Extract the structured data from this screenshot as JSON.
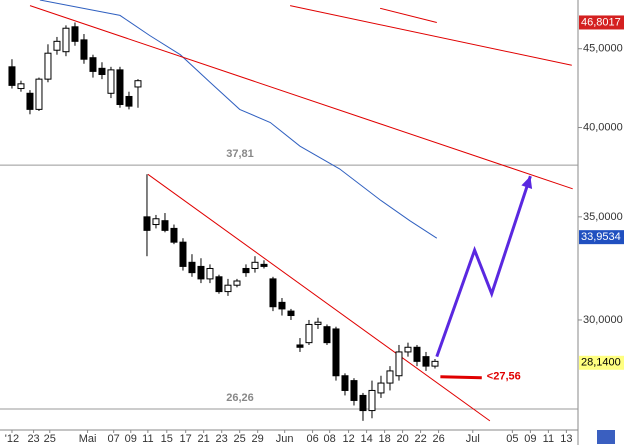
{
  "chart_data": {
    "type": "candlestick",
    "log_y": true,
    "xlim": [
      -1.33,
      62.89
    ],
    "ylim": [
      25.45,
      48.4
    ],
    "yticks": [
      {
        "value": 45,
        "label": "45,0000"
      },
      {
        "value": 40,
        "label": "40,0000"
      },
      {
        "value": 35,
        "label": "35,0000"
      },
      {
        "value": 30,
        "label": "30,0000"
      }
    ],
    "xticks": [
      {
        "value": 0,
        "label": "'12"
      },
      {
        "value": 2.4,
        "label": "23"
      },
      {
        "value": 4.2,
        "label": "25"
      },
      {
        "value": 8.4,
        "label": "Mai"
      },
      {
        "value": 11.3,
        "label": "07"
      },
      {
        "value": 13.2,
        "label": "09"
      },
      {
        "value": 15.1,
        "label": "11"
      },
      {
        "value": 17.2,
        "label": "15"
      },
      {
        "value": 19.3,
        "label": "17"
      },
      {
        "value": 21.3,
        "label": "21"
      },
      {
        "value": 23.3,
        "label": "23"
      },
      {
        "value": 25.3,
        "label": "25"
      },
      {
        "value": 27.3,
        "label": "29"
      },
      {
        "value": 30.3,
        "label": "Jun"
      },
      {
        "value": 33.4,
        "label": "06"
      },
      {
        "value": 35.3,
        "label": "08"
      },
      {
        "value": 37.4,
        "label": "12"
      },
      {
        "value": 39.4,
        "label": "14"
      },
      {
        "value": 41.4,
        "label": "18"
      },
      {
        "value": 43.4,
        "label": "20"
      },
      {
        "value": 45.4,
        "label": "22"
      },
      {
        "value": 47.4,
        "label": "26"
      },
      {
        "value": 51.2,
        "label": "Jul"
      },
      {
        "value": 55.6,
        "label": "05"
      },
      {
        "value": 57.6,
        "label": "09"
      },
      {
        "value": 59.6,
        "label": "11"
      },
      {
        "value": 61.6,
        "label": "13"
      }
    ],
    "candles": {
      "x": [
        0,
        1,
        2,
        3,
        4,
        5,
        6,
        7,
        8,
        9,
        10,
        11,
        12,
        13,
        14,
        15,
        16,
        17,
        18,
        19,
        20,
        21,
        22,
        23,
        24,
        25,
        26,
        27,
        28,
        29,
        30,
        31,
        32,
        33,
        34,
        35,
        36,
        37,
        38,
        39,
        40,
        41,
        42,
        43,
        44,
        45,
        46,
        47
      ],
      "open": [
        43.8,
        42.4,
        42.1,
        41.1,
        43.0,
        44.9,
        44.8,
        46.5,
        45.6,
        44.4,
        43.7,
        42.1,
        43.6,
        41.9,
        42.5,
        35.0,
        34.6,
        34.8,
        34.4,
        33.7,
        32.7,
        32.5,
        31.9,
        32.0,
        31.3,
        31.6,
        32.4,
        32.4,
        32.6,
        31.9,
        30.8,
        30.4,
        28.9,
        29.0,
        29.8,
        29.7,
        29.6,
        27.6,
        27.4,
        26.8,
        26.2,
        26.9,
        27.3,
        27.6,
        28.6,
        28.8,
        28.4,
        28.0
      ],
      "high": [
        44.3,
        42.9,
        42.3,
        43.1,
        45.3,
        45.8,
        46.6,
        46.8,
        46.0,
        44.6,
        44.1,
        43.8,
        43.8,
        42.2,
        43.0,
        37.3,
        35.1,
        35.2,
        34.6,
        33.9,
        33.1,
        32.9,
        32.6,
        32.1,
        31.9,
        31.9,
        32.6,
        33.0,
        32.8,
        32.0,
        31.0,
        30.5,
        29.2,
        30.0,
        30.1,
        29.8,
        29.7,
        27.7,
        27.5,
        26.9,
        27.4,
        27.6,
        28.0,
        28.9,
        29.0,
        28.9,
        28.6,
        28.3
      ],
      "low": [
        42.4,
        42.2,
        40.8,
        41.0,
        42.8,
        44.6,
        44.5,
        45.2,
        44.0,
        43.1,
        43.0,
        41.8,
        41.2,
        41.1,
        41.2,
        33.0,
        34.4,
        34.2,
        33.6,
        32.3,
        32.0,
        31.7,
        31.7,
        31.2,
        31.1,
        31.5,
        32.0,
        32.2,
        32.4,
        30.4,
        30.2,
        30.0,
        28.6,
        28.9,
        29.6,
        28.9,
        27.4,
        26.8,
        26.4,
        25.8,
        25.9,
        26.7,
        27.0,
        27.4,
        28.4,
        28.0,
        27.8,
        27.9
      ],
      "close": [
        42.6,
        42.7,
        41.1,
        43.0,
        44.7,
        45.5,
        46.4,
        45.5,
        44.3,
        43.5,
        43.3,
        43.6,
        41.4,
        41.3,
        42.9,
        34.3,
        34.9,
        34.3,
        33.7,
        32.5,
        32.2,
        31.9,
        32.4,
        31.3,
        31.6,
        31.8,
        32.2,
        32.7,
        32.5,
        30.6,
        30.5,
        30.2,
        28.8,
        29.8,
        29.9,
        29.0,
        27.6,
        27.0,
        26.6,
        26.2,
        27.0,
        27.3,
        27.8,
        28.6,
        28.8,
        28.2,
        28.0,
        28.2
      ]
    },
    "moving_average": {
      "color": "#3060c0",
      "x": [
        3.1,
        12,
        15.3,
        18.7,
        22,
        25.3,
        28.7,
        32,
        36.4,
        40.9,
        44.2,
        47.2
      ],
      "values": [
        48.4,
        47.3,
        45.9,
        44.6,
        42.8,
        41.1,
        40.3,
        38.9,
        37.6,
        35.9,
        34.8,
        33.9
      ]
    },
    "trend_lines": [
      {
        "color": "#e00000",
        "x": [
          2,
          62.3
        ],
        "values": [
          48.0,
          36.5
        ]
      },
      {
        "color": "#e00000",
        "x": [
          30.9,
          62.2
        ],
        "values": [
          48.0,
          43.9
        ]
      },
      {
        "color": "#e00000",
        "x": [
          40.9,
          47.2
        ],
        "values": [
          47.8,
          46.8
        ]
      },
      {
        "color": "#e00000",
        "x": [
          15.1,
          53.1
        ],
        "values": [
          37.3,
          25.8
        ]
      }
    ],
    "forecast": {
      "color": "#5a28e0",
      "x": [
        47.2,
        51.4,
        53.3,
        57.6
      ],
      "values": [
        28.4,
        33.3,
        31.2,
        37.2
      ]
    },
    "levels": [
      {
        "value": 37.81,
        "label": "37,81"
      },
      {
        "value": 26.26,
        "label": "26,26"
      }
    ],
    "target": {
      "value": 27.56,
      "label": "<27,56",
      "x": [
        47.6,
        52.2
      ],
      "color": "#e00000"
    },
    "price_tags": [
      {
        "value": 46.8017,
        "label": "46,8017",
        "color": "#d42020"
      },
      {
        "value": 33.9534,
        "label": "33,9534",
        "color": "#2050c0"
      },
      {
        "value": 28.14,
        "label": "28,1400",
        "color": "#ffff80"
      }
    ]
  }
}
